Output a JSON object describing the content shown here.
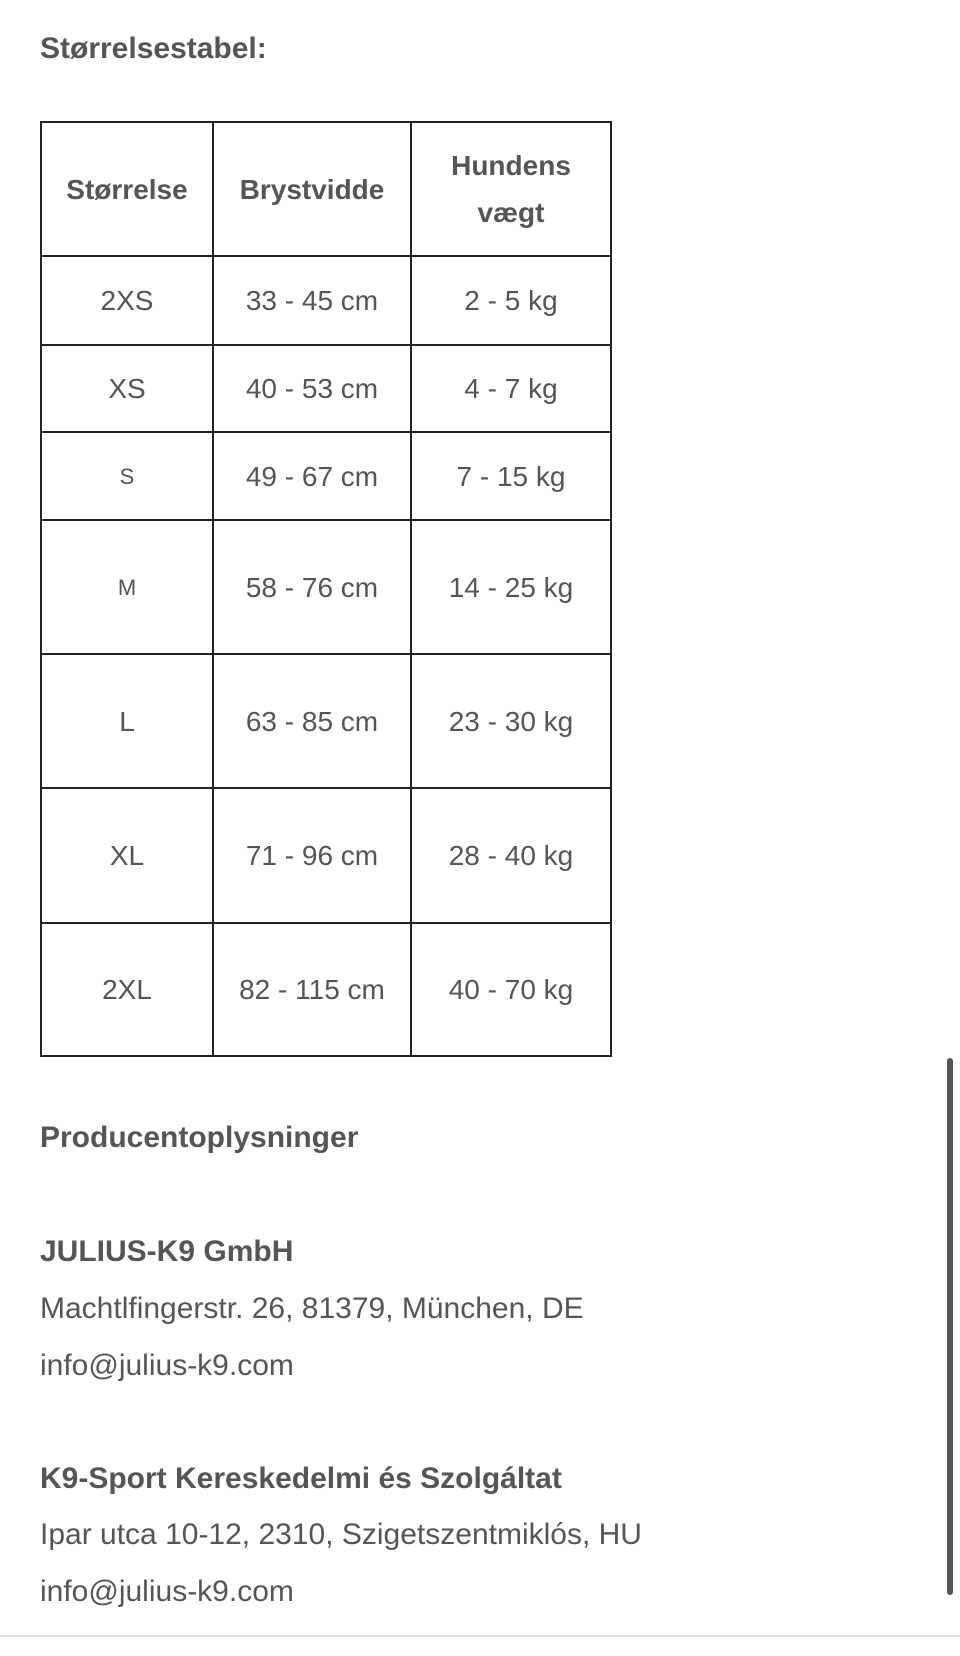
{
  "size_table": {
    "title": "Størrelsestabel:",
    "headers": [
      "Størrelse",
      "Brystvidde",
      "Hundens vægt"
    ],
    "rows": [
      {
        "size": "2XS",
        "chest": "33 - 45 cm",
        "weight": "2 - 5 kg"
      },
      {
        "size": "XS",
        "chest": "40 - 53 cm",
        "weight": "4 - 7 kg"
      },
      {
        "size": "S",
        "chest": "49 - 67 cm",
        "weight": "7 - 15 kg"
      },
      {
        "size": "M",
        "chest": "58 - 76 cm",
        "weight": "14 - 25 kg"
      },
      {
        "size": "L",
        "chest": "63 - 85 cm",
        "weight": "23 - 30 kg"
      },
      {
        "size": "XL",
        "chest": "71 - 96 cm",
        "weight": "28 - 40 kg"
      },
      {
        "size": "2XL",
        "chest": "82 - 115 cm",
        "weight": "40 - 70 kg"
      }
    ]
  },
  "manufacturer": {
    "title": "Producentoplysninger",
    "companies": [
      {
        "name": "JULIUS-K9 GmbH",
        "address": "Machtlfingerstr. 26, 81379, München, DE",
        "email": "info@julius-k9.com"
      },
      {
        "name": "K9-Sport Kereskedelmi és Szolgáltat",
        "address": "Ipar utca 10-12, 2310, Szigetszentmiklós, HU",
        "email": "info@julius-k9.com"
      }
    ]
  },
  "colors": {
    "text": "#555555",
    "border": "#222222",
    "scrollbar": "#555555"
  }
}
